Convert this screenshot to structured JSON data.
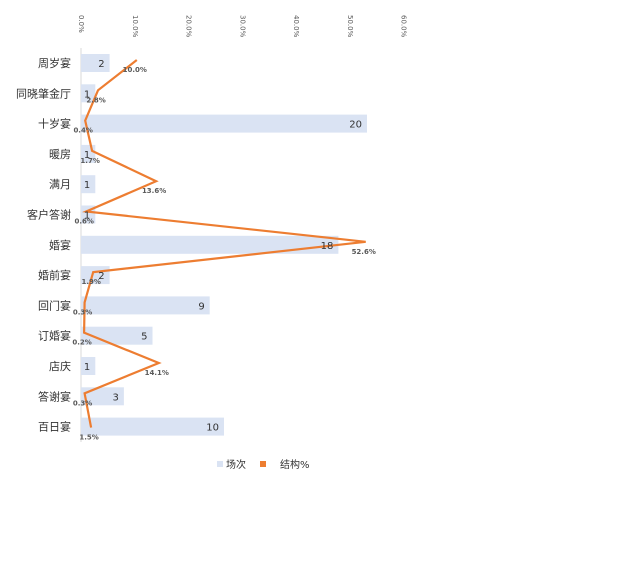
{
  "chart_data": {
    "type": "bar",
    "orientation": "horizontal",
    "categories": [
      "周岁宴",
      "同晓肇金厅",
      "十岁宴",
      "暖房",
      "满月",
      "客户答谢",
      "婚宴",
      "婚前宴",
      "回门宴",
      "订婚宴",
      "店庆",
      "答谢宴",
      "百日宴"
    ],
    "series": [
      {
        "name": "场次",
        "type": "bar",
        "color": "#dae3f3",
        "values": [
          2,
          1,
          20,
          1,
          1,
          1,
          18,
          2,
          9,
          5,
          1,
          3,
          10
        ]
      },
      {
        "name": "结构%",
        "type": "line",
        "color": "#ed7d31",
        "values": [
          10.0,
          2.8,
          0.4,
          1.7,
          13.6,
          0.6,
          52.6,
          1.9,
          0.3,
          0.2,
          14.1,
          0.3,
          1.5
        ]
      }
    ],
    "value_labels": [
      "2",
      "1",
      "20",
      "1",
      "1",
      "1",
      "18",
      "2",
      "9",
      "5",
      "1",
      "3",
      "10"
    ],
    "pct_labels": [
      "10.0%",
      "2.8%",
      "0.4%",
      "1.7%",
      "13.6%",
      "0.6%",
      "52.6%",
      "1.9%",
      "0.3%",
      "0.2%",
      "14.1%",
      "0.3%",
      "1.5%"
    ],
    "pct_axis": {
      "min": 0,
      "max": 60,
      "ticks": [
        "0.0%",
        "10.0%",
        "20.0%",
        "30.0%",
        "40.0%",
        "50.0%",
        "60.0%"
      ],
      "position": "top"
    },
    "count_axis": {
      "min": 0,
      "max": 22.5
    },
    "grid": false,
    "legend": {
      "position": "bottom",
      "items": [
        "场次",
        "结构%"
      ]
    }
  }
}
